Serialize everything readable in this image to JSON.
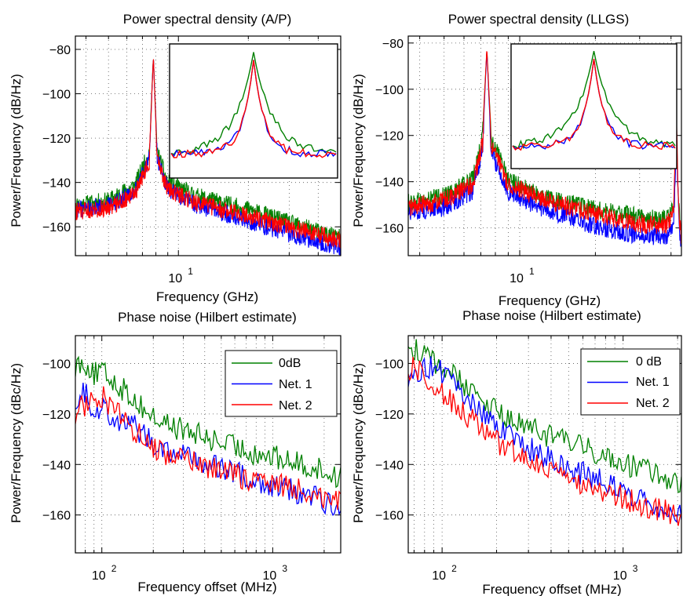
{
  "chart_data": [
    {
      "type": "line",
      "title": "Power spectral density (A/P)",
      "xlabel": "Frequency (GHz)",
      "ylabel": "Power/Frequency (dB/Hz)",
      "xscale": "log",
      "xlim": [
        3.6,
        50
      ],
      "ylim": [
        -173,
        -74
      ],
      "yticks": [
        -80,
        -100,
        -120,
        -140,
        -160
      ],
      "ytick_labels": [
        "−80",
        "−100",
        "−120",
        "−140",
        "−160"
      ],
      "xtick_base": "10",
      "xtick_exp": "1",
      "grid": true,
      "inset": true,
      "colors": {
        "green": "#008000",
        "blue": "#0000ff",
        "red": "#ff0000"
      },
      "peak_ghz": 7.8,
      "series": [
        {
          "key": "green",
          "x": [
            3.6,
            5,
            6.5,
            7.5,
            7.8,
            8.1,
            9,
            12,
            20,
            30,
            50
          ],
          "y": [
            -149,
            -147,
            -140,
            -125,
            -83,
            -125,
            -139,
            -145,
            -151,
            -157,
            -164
          ]
        },
        {
          "key": "blue",
          "x": [
            3.6,
            5,
            6.5,
            7.5,
            7.8,
            8.1,
            9,
            12,
            20,
            30,
            50
          ],
          "y": [
            -151,
            -149,
            -143,
            -128,
            -83,
            -128,
            -142,
            -149,
            -156,
            -162,
            -168
          ]
        },
        {
          "key": "red",
          "x": [
            3.6,
            5,
            6.5,
            7.5,
            7.8,
            8.1,
            9,
            12,
            20,
            30,
            50
          ],
          "y": [
            -152,
            -150,
            -144,
            -129,
            -83,
            -129,
            -142,
            -148,
            -154,
            -159,
            -165
          ]
        }
      ]
    },
    {
      "type": "line",
      "title": "Power spectral density (LLGS)",
      "xlabel": "Frequency (GHz)",
      "ylabel": "Power/Frequency (dB/Hz)",
      "xscale": "log",
      "xlim": [
        3.6,
        44
      ],
      "ylim": [
        -172,
        -77
      ],
      "yticks": [
        -80,
        -100,
        -120,
        -140,
        -160
      ],
      "ytick_labels": [
        "−80",
        "−100",
        "−120",
        "−140",
        "−160"
      ],
      "xtick_base": "10",
      "xtick_exp": "1",
      "grid": true,
      "inset": true,
      "colors": {
        "green": "#008000",
        "blue": "#0000ff",
        "red": "#ff0000"
      },
      "peak_ghz": 7.4,
      "second_peak_ghz": 42,
      "series": [
        {
          "key": "green",
          "x": [
            3.6,
            5,
            6.5,
            7.1,
            7.4,
            7.7,
            9,
            12,
            20,
            30,
            38,
            41,
            42,
            43,
            44
          ],
          "y": [
            -148,
            -145,
            -138,
            -120,
            -83,
            -120,
            -138,
            -145,
            -151,
            -154,
            -155,
            -150,
            -118,
            -150,
            -162
          ]
        },
        {
          "key": "blue",
          "x": [
            3.6,
            5,
            6.5,
            7.1,
            7.4,
            7.7,
            9,
            12,
            20,
            30,
            38,
            41,
            42,
            43,
            44
          ],
          "y": [
            -152,
            -150,
            -143,
            -126,
            -83,
            -126,
            -143,
            -150,
            -158,
            -162,
            -163,
            -157,
            -118,
            -157,
            -168
          ]
        },
        {
          "key": "red",
          "x": [
            3.6,
            5,
            6.5,
            7.1,
            7.4,
            7.7,
            9,
            12,
            20,
            30,
            38,
            41,
            42,
            43,
            44
          ],
          "y": [
            -150,
            -147,
            -140,
            -123,
            -82,
            -123,
            -140,
            -146,
            -153,
            -157,
            -158,
            -152,
            -111,
            -152,
            -165
          ]
        }
      ]
    },
    {
      "type": "line",
      "title": "Phase noise (Hilbert estimate)",
      "xlabel": "Frequency offset (MHz)",
      "ylabel": "Power/Frequency (dBc/Hz)",
      "xscale": "log",
      "xlim": [
        70,
        2500
      ],
      "ylim": [
        -175,
        -89
      ],
      "yticks": [
        -100,
        -120,
        -140,
        -160
      ],
      "ytick_labels": [
        "−100",
        "−120",
        "−140",
        "−160"
      ],
      "xticks": [
        100,
        1000
      ],
      "xtick_exps": [
        "2",
        "3"
      ],
      "xtick_base": "10",
      "grid": true,
      "legend": "top-right",
      "colors": {
        "green": "#008000",
        "blue": "#0000ff",
        "red": "#ff0000"
      },
      "series": [
        {
          "name": "0dB",
          "key": "green",
          "x": [
            70,
            80,
            90,
            100,
            120,
            150,
            200,
            300,
            500,
            800,
            1200,
            1800,
            2500
          ],
          "y": [
            -99,
            -98,
            -103,
            -102,
            -106,
            -112,
            -120,
            -125,
            -130,
            -134,
            -137,
            -140,
            -144
          ]
        },
        {
          "name": "Net. 1",
          "key": "blue",
          "x": [
            70,
            80,
            90,
            100,
            120,
            150,
            200,
            300,
            500,
            800,
            1200,
            1800,
            2500
          ],
          "y": [
            -112,
            -110,
            -117,
            -116,
            -120,
            -123,
            -130,
            -135,
            -140,
            -145,
            -148,
            -152,
            -156
          ]
        },
        {
          "name": "Net. 2",
          "key": "red",
          "x": [
            70,
            80,
            90,
            100,
            120,
            150,
            200,
            300,
            500,
            800,
            1200,
            1800,
            2500
          ],
          "y": [
            -118,
            -115,
            -112,
            -111,
            -118,
            -124,
            -132,
            -137,
            -141,
            -145,
            -147,
            -150,
            -154
          ]
        }
      ]
    },
    {
      "type": "line",
      "title": "Phase noise (Hilbert estimate)",
      "xlabel": "Frequency offset (MHz)",
      "ylabel": "Power/Frequency (dBc/Hz)",
      "xscale": "log",
      "xlim": [
        65,
        2100
      ],
      "ylim": [
        -175,
        -89
      ],
      "yticks": [
        -100,
        -120,
        -140,
        -160
      ],
      "ytick_labels": [
        "−100",
        "−120",
        "−140",
        "−160"
      ],
      "xticks": [
        100,
        1000
      ],
      "xtick_exps": [
        "2",
        "3"
      ],
      "xtick_base": "10",
      "grid": true,
      "legend": "top-right",
      "colors": {
        "green": "#008000",
        "blue": "#0000ff",
        "red": "#ff0000"
      },
      "series": [
        {
          "name": "0 dB",
          "key": "green",
          "x": [
            65,
            70,
            80,
            100,
            120,
            150,
            200,
            300,
            500,
            800,
            1200,
            1600,
            2100
          ],
          "y": [
            -91,
            -93,
            -96,
            -100,
            -104,
            -110,
            -118,
            -124,
            -130,
            -135,
            -140,
            -143,
            -146
          ]
        },
        {
          "name": "Net. 1",
          "key": "blue",
          "x": [
            65,
            70,
            80,
            100,
            120,
            150,
            200,
            300,
            500,
            800,
            1200,
            1600,
            2100
          ],
          "y": [
            -107,
            -104,
            -99,
            -102,
            -108,
            -115,
            -124,
            -132,
            -140,
            -146,
            -151,
            -155,
            -158
          ]
        },
        {
          "name": "Net. 2",
          "key": "red",
          "x": [
            65,
            70,
            80,
            100,
            120,
            150,
            200,
            300,
            500,
            800,
            1200,
            1600,
            2100
          ],
          "y": [
            -102,
            -99,
            -105,
            -110,
            -115,
            -122,
            -130,
            -137,
            -145,
            -149,
            -154,
            -156,
            -160
          ]
        }
      ]
    }
  ]
}
